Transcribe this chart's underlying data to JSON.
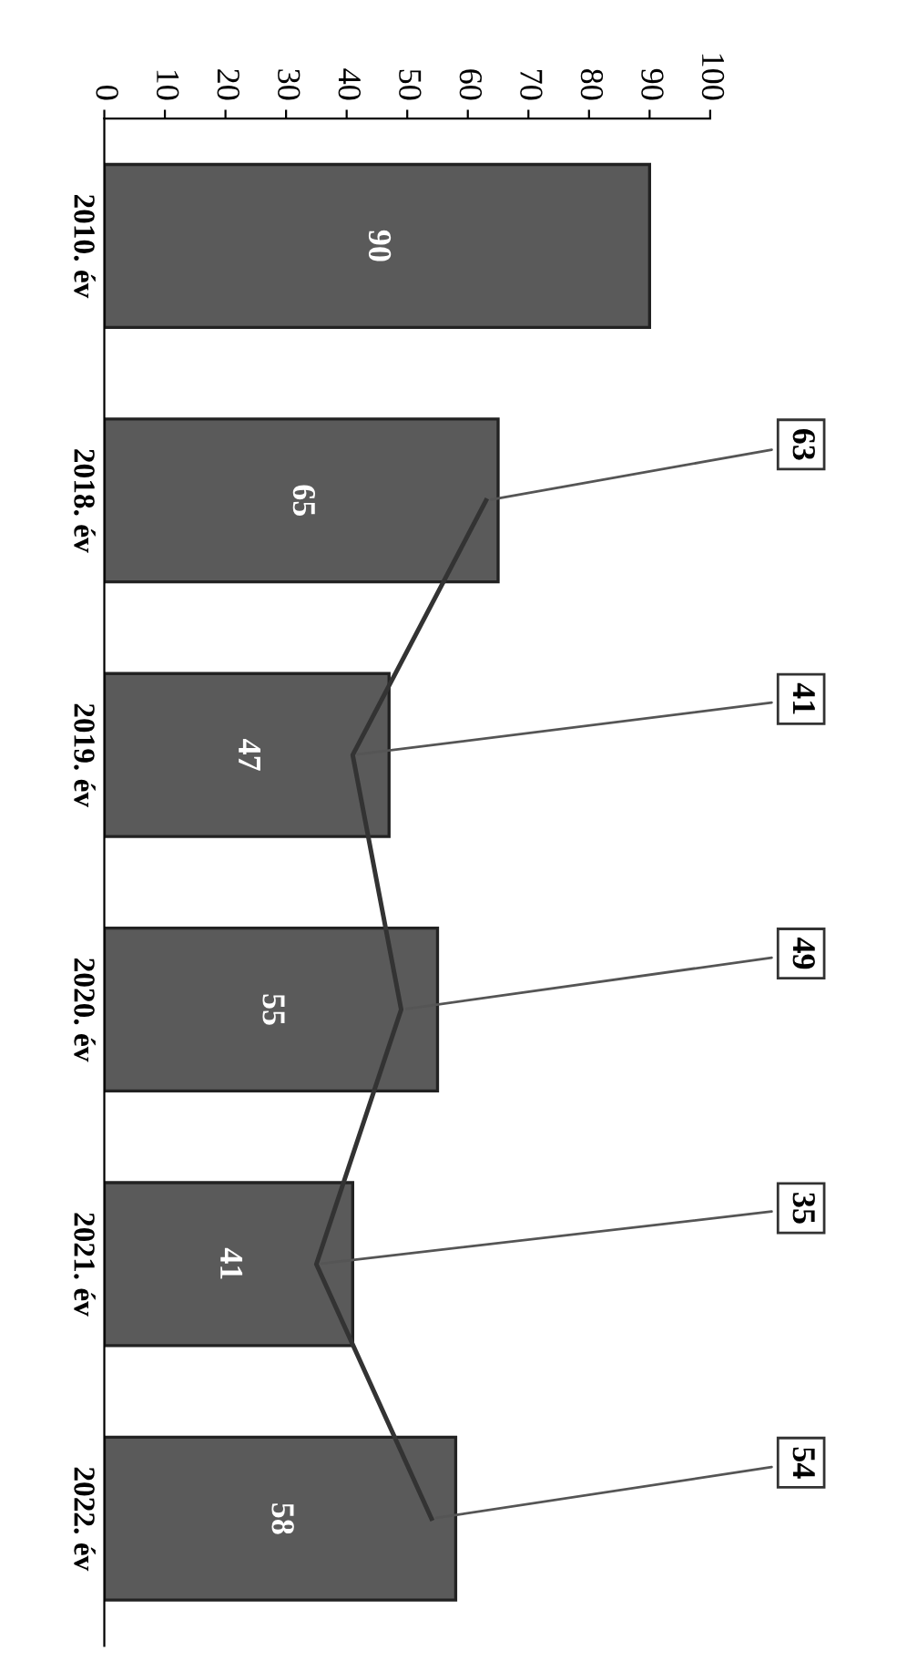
{
  "chart_data": {
    "type": "bar",
    "orientation": "horizontal",
    "categories": [
      "2010. év",
      "2018. év",
      "2019. év",
      "2020. év",
      "2021. év",
      "2022. év"
    ],
    "series": [
      {
        "color": "#5a5a5a",
        "values": [
          90,
          65,
          47,
          55,
          41,
          58
        ]
      },
      {
        "type": "line",
        "color": "#333333",
        "values": [
          null,
          63,
          41,
          49,
          35,
          54
        ]
      }
    ],
    "data_labels": true,
    "xlim": [
      0,
      100
    ],
    "xticks": [
      0,
      10,
      20,
      30,
      40,
      50,
      60,
      70,
      80,
      90,
      100
    ],
    "grid": false,
    "legend": false,
    "marker": "none",
    "line_style": "solid"
  }
}
